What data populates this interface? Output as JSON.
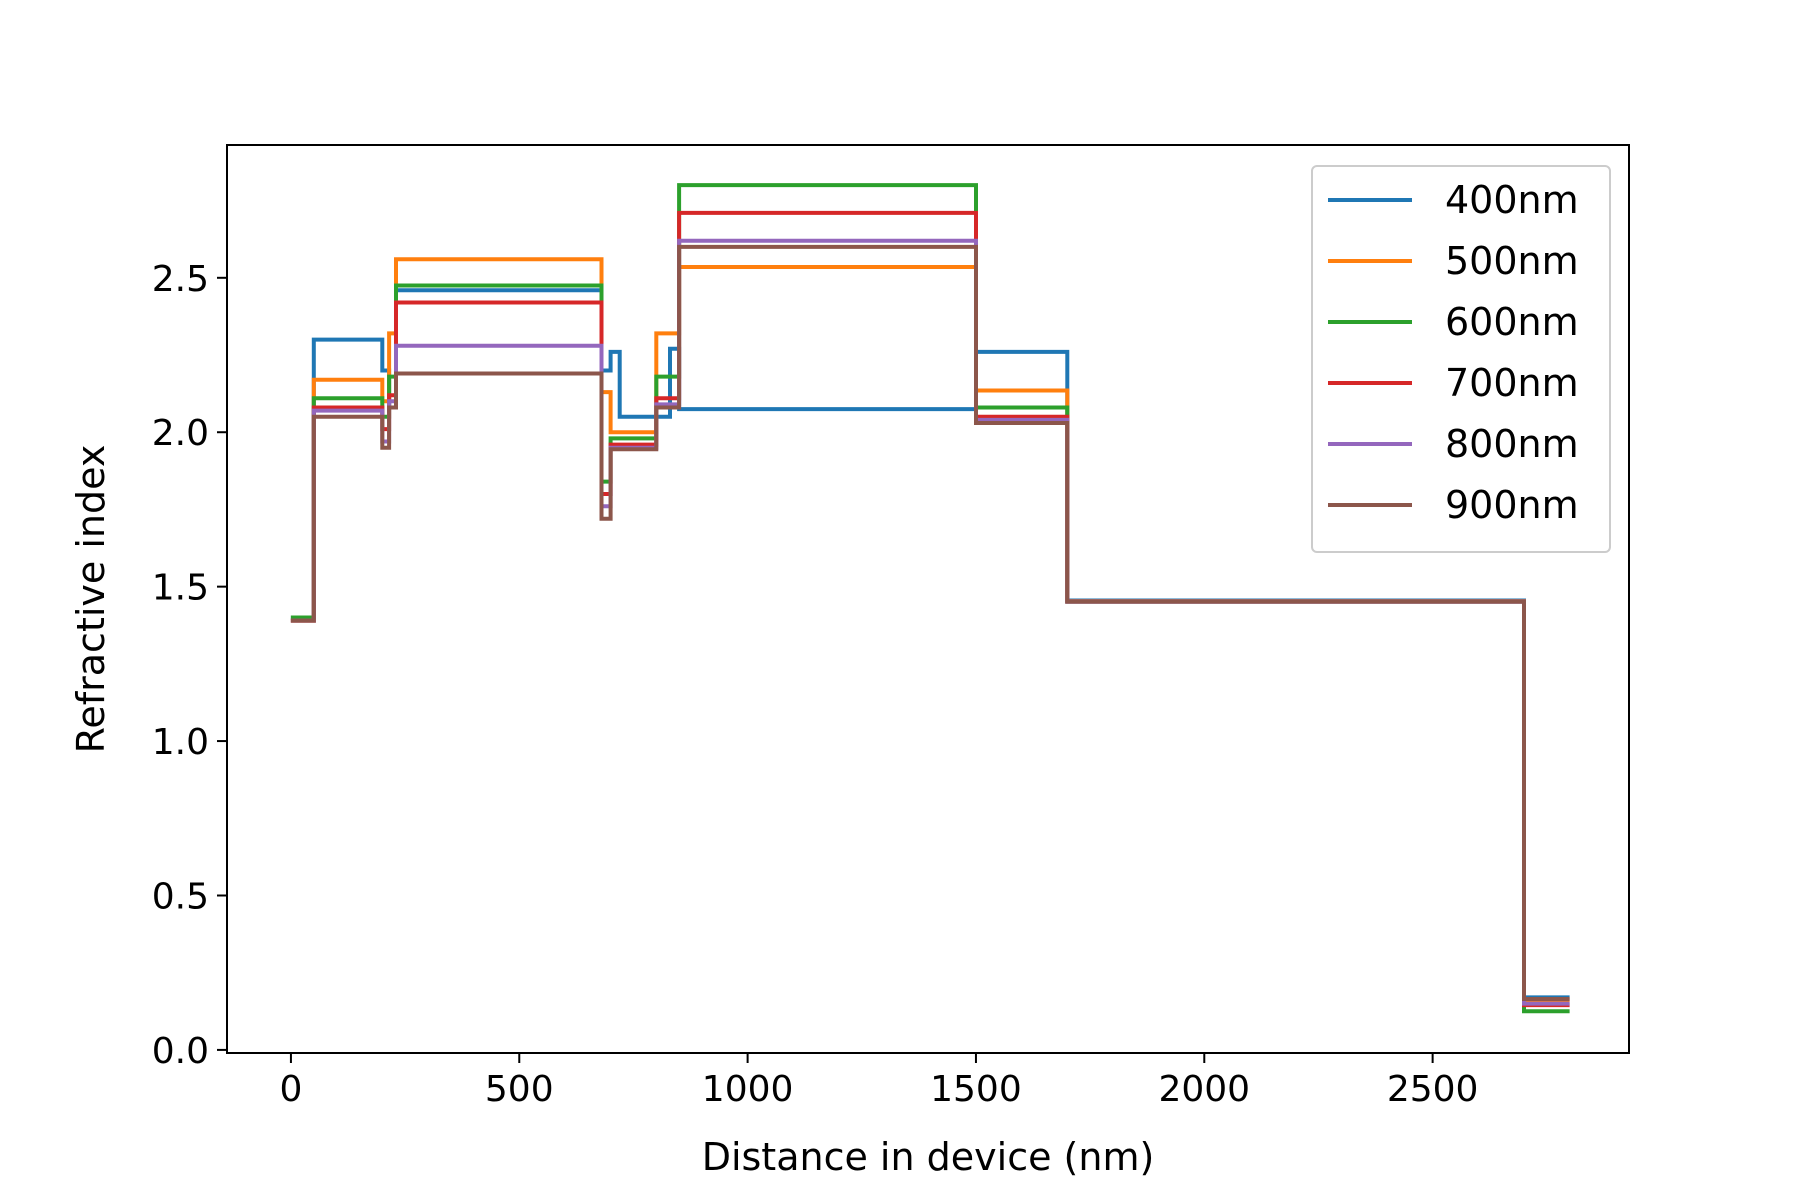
{
  "chart_data": {
    "type": "line",
    "title": "",
    "xlabel": "Distance in device (nm)",
    "ylabel": "Refractive index",
    "xlim": [
      -140,
      2930
    ],
    "ylim": [
      -0.01,
      2.93
    ],
    "xticks": [
      0,
      500,
      1000,
      1500,
      2000,
      2500
    ],
    "yticks": [
      0.0,
      0.5,
      1.0,
      1.5,
      2.0,
      2.5
    ],
    "xtick_labels": [
      "0",
      "500",
      "1000",
      "1500",
      "2000",
      "2500"
    ],
    "ytick_labels": [
      "0.0",
      "0.5",
      "1.0",
      "1.5",
      "2.0",
      "2.5"
    ],
    "grid": false,
    "legend_position": "top-right",
    "step": "post",
    "x": [
      0,
      50,
      200,
      215,
      230,
      680,
      700,
      720,
      800,
      830,
      850,
      1500,
      1700,
      2700,
      2800
    ],
    "series": [
      {
        "name": "400nm",
        "color": "#1f77b4",
        "values": [
          1.4,
          2.3,
          2.2,
          2.08,
          2.46,
          2.2,
          2.26,
          2.05,
          2.05,
          2.27,
          2.075,
          2.26,
          1.455,
          0.17,
          0.17
        ]
      },
      {
        "name": "500nm",
        "color": "#ff7f0e",
        "values": [
          1.39,
          2.17,
          2.1,
          2.32,
          2.56,
          2.13,
          2.0,
          2.0,
          2.32,
          2.32,
          2.535,
          2.135,
          1.453,
          0.16,
          0.16
        ]
      },
      {
        "name": "600nm",
        "color": "#2ca02c",
        "values": [
          1.4,
          2.11,
          2.05,
          2.18,
          2.475,
          1.84,
          1.98,
          1.98,
          2.18,
          2.18,
          2.8,
          2.08,
          1.452,
          0.125,
          0.125
        ]
      },
      {
        "name": "700nm",
        "color": "#d62728",
        "values": [
          1.39,
          2.08,
          2.01,
          2.12,
          2.42,
          1.8,
          1.96,
          1.96,
          2.11,
          2.11,
          2.71,
          2.05,
          1.452,
          0.145,
          0.145
        ]
      },
      {
        "name": "800nm",
        "color": "#9467bd",
        "values": [
          1.39,
          2.07,
          1.97,
          2.1,
          2.28,
          1.76,
          1.95,
          1.95,
          2.09,
          2.09,
          2.62,
          2.04,
          1.451,
          0.15,
          0.15
        ]
      },
      {
        "name": "900nm",
        "color": "#8c564b",
        "values": [
          1.39,
          2.05,
          1.95,
          2.08,
          2.19,
          1.72,
          1.945,
          1.945,
          2.08,
          2.08,
          2.6,
          2.03,
          1.451,
          0.165,
          0.165
        ]
      }
    ]
  }
}
